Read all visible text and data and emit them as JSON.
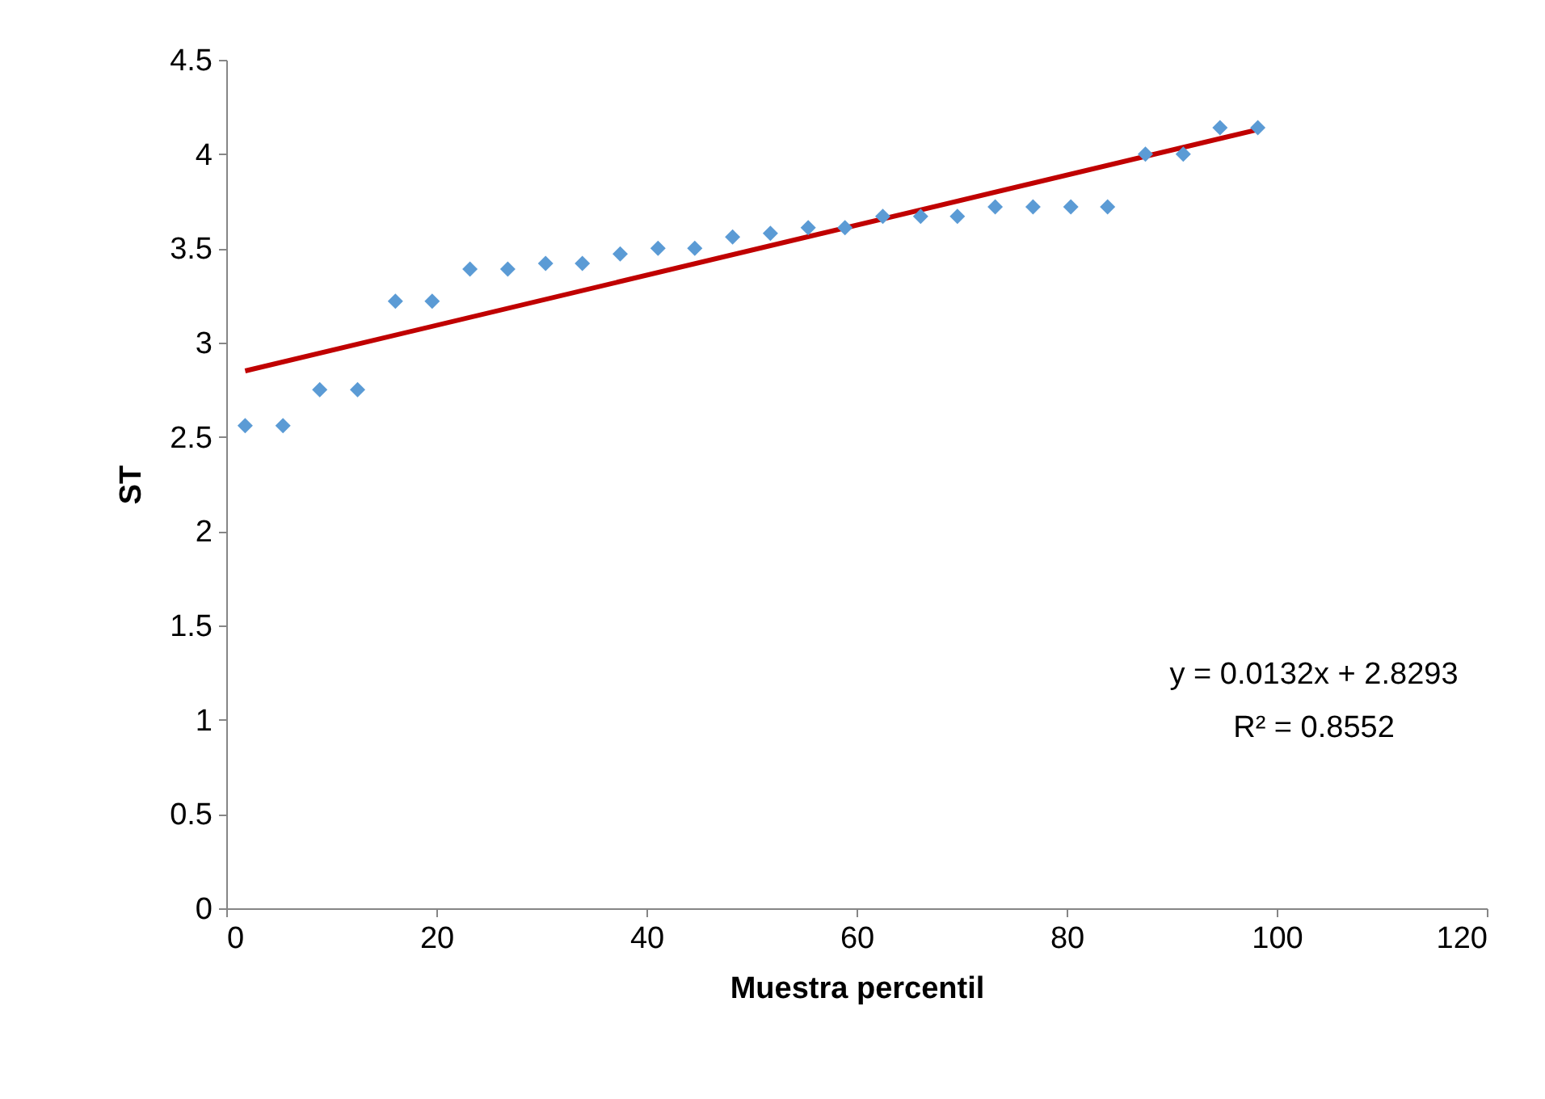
{
  "chart_data": {
    "type": "scatter",
    "xlabel": "Muestra percentil",
    "ylabel": "ST",
    "xlim": [
      0,
      120
    ],
    "xticks": [
      0,
      20,
      40,
      60,
      80,
      100,
      120
    ],
    "ylim": [
      0,
      4.5
    ],
    "yticks": [
      0,
      0.5,
      1,
      1.5,
      2,
      2.5,
      3,
      3.5,
      4,
      4.5
    ],
    "grid": false,
    "series": [
      {
        "marker": "diamond",
        "color": "#5b9bd5",
        "x": [
          1.8,
          5.4,
          8.9,
          12.5,
          16.1,
          19.6,
          23.2,
          26.8,
          30.4,
          33.9,
          37.5,
          41.1,
          44.6,
          48.2,
          51.8,
          55.4,
          58.9,
          62.5,
          66.1,
          69.6,
          73.2,
          76.8,
          80.4,
          83.9,
          87.5,
          91.1,
          94.6,
          98.2
        ],
        "values": [
          2.56,
          2.56,
          2.75,
          2.75,
          3.22,
          3.22,
          3.39,
          3.39,
          3.42,
          3.42,
          3.47,
          3.5,
          3.5,
          3.56,
          3.58,
          3.61,
          3.61,
          3.67,
          3.67,
          3.67,
          3.72,
          3.72,
          3.72,
          3.72,
          4.0,
          4.0,
          4.14,
          4.14
        ]
      },
      {
        "type": "line",
        "color": "#c00000",
        "x": [
          1.8,
          98.2
        ],
        "values": [
          2.85,
          4.13
        ]
      }
    ],
    "annotations": [
      "y = 0.0132x + 2.8293",
      "R² = 0.8552"
    ]
  }
}
